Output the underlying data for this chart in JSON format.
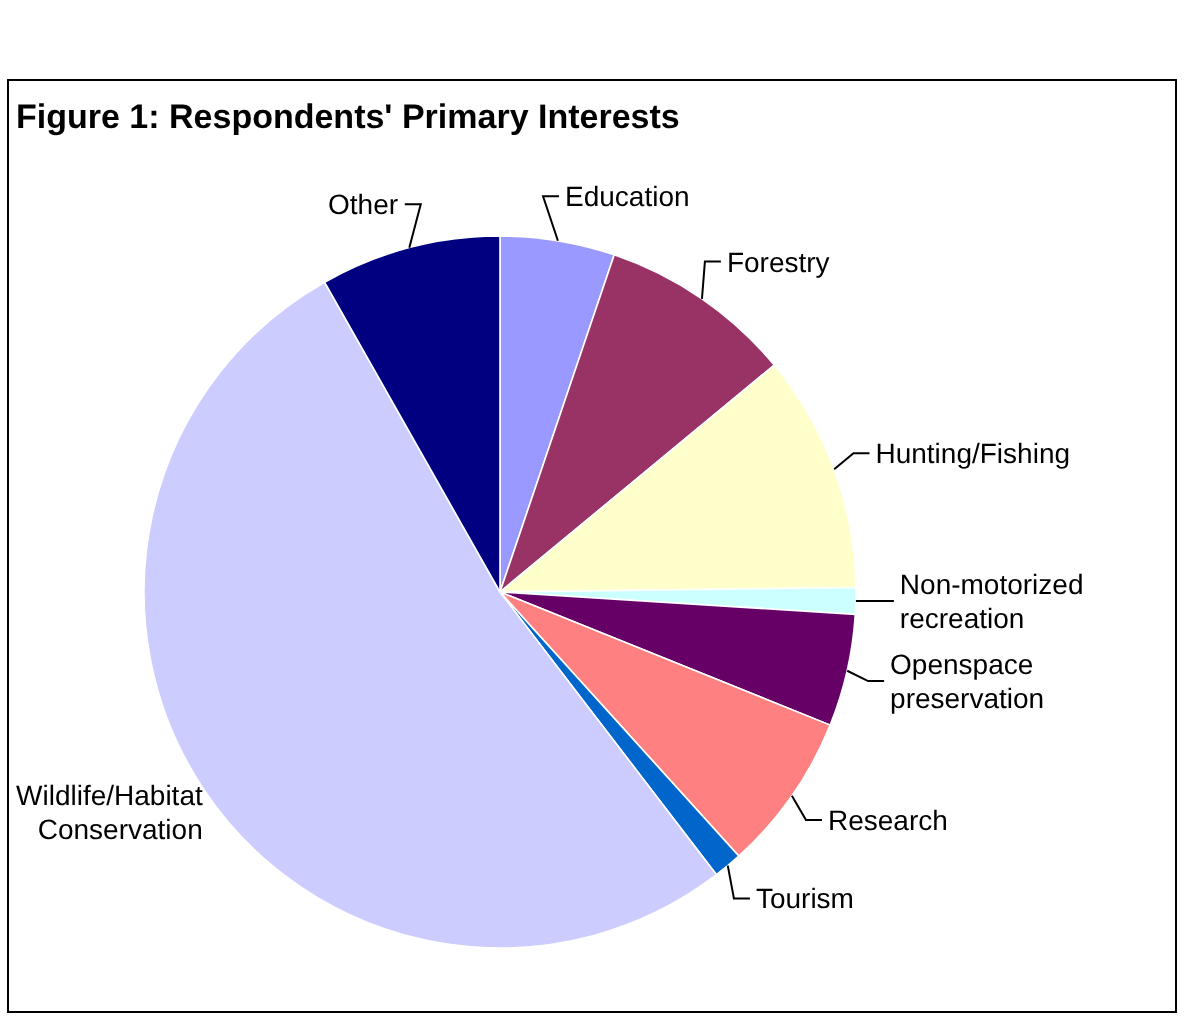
{
  "chart_data": {
    "type": "pie",
    "title": "Figure 1: Respondents' Primary Interests",
    "categories": [
      "Education",
      "Forestry",
      "Hunting/Fishing",
      "Non-motorized recreation",
      "Openspace preservation",
      "Research",
      "Tourism",
      "Wildlife/Habitat Conservation",
      "Other"
    ],
    "values": [
      5.2,
      8.8,
      10.8,
      1.2,
      5.1,
      7.2,
      1.3,
      52.2,
      8.2
    ],
    "colors": [
      "#9999ff",
      "#993366",
      "#ffffcc",
      "#ccffff",
      "#660066",
      "#ff8080",
      "#0066cc",
      "#ccccff",
      "#000080"
    ]
  }
}
